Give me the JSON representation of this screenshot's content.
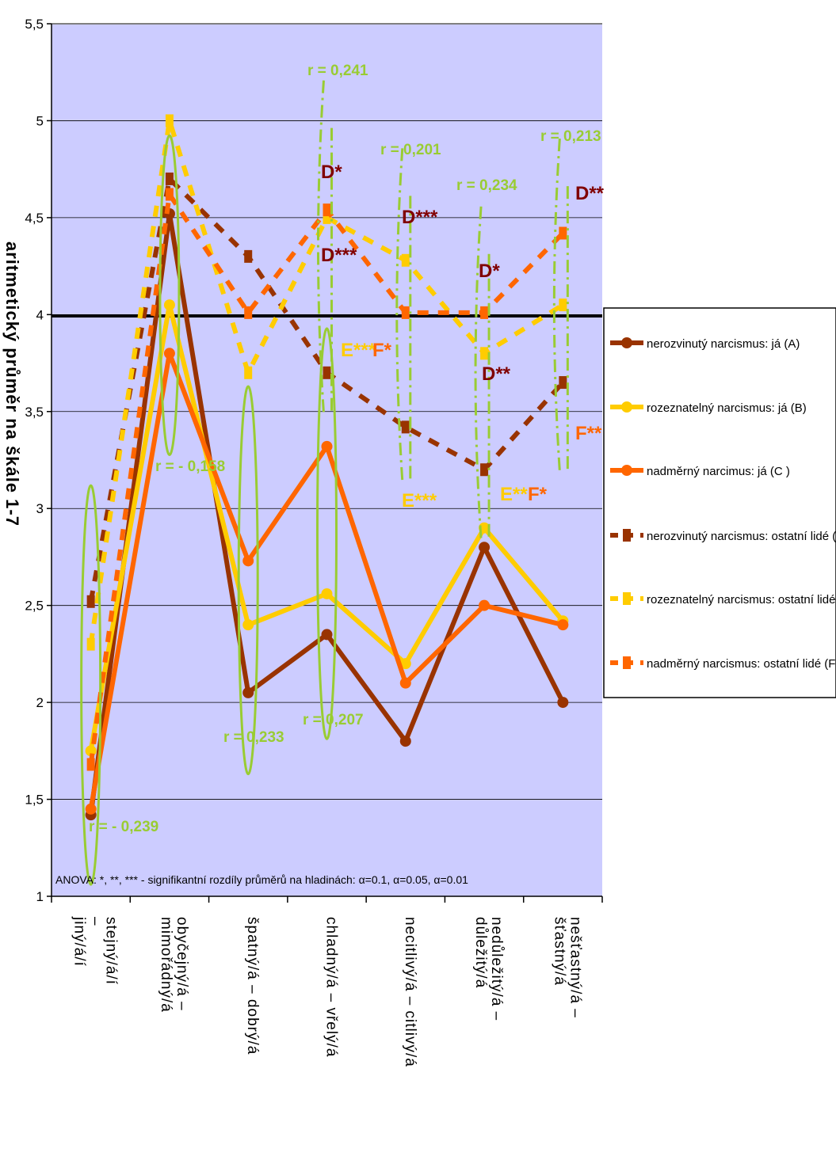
{
  "chart_data": {
    "type": "line",
    "ylabel": "aritmetický průměr na škále 1-7",
    "ylim": [
      1,
      5.5
    ],
    "yticks": [
      "1",
      "1,5",
      "2",
      "2,5",
      "3",
      "3,5",
      "4",
      "4,5",
      "5",
      "5,5"
    ],
    "reference_line": 4,
    "grid": true,
    "legend_position": "right",
    "categories": [
      [
        "stejný/á/í",
        "–",
        "jiný/á/í"
      ],
      [
        "obyčejný/á –",
        "mimořádný/á"
      ],
      [
        "špatný/á – dobrý/á"
      ],
      [
        "chladný/á – vřelý/á"
      ],
      [
        "necitlivý/á – citlivý/á"
      ],
      [
        "nedůležitý/á –",
        "důležitý/á"
      ],
      [
        "nešťastný/á –",
        "šťastný/á"
      ]
    ],
    "series": [
      {
        "name": "nerozvinutý narcismus: já (A)",
        "style": "solid",
        "color": "#993300",
        "values": [
          1.42,
          4.52,
          2.05,
          2.35,
          1.8,
          2.8,
          2.0
        ]
      },
      {
        "name": "rozeznatelný narcismus: já (B)",
        "style": "solid",
        "color": "#ffcc00",
        "values": [
          1.75,
          4.05,
          2.4,
          2.56,
          2.2,
          2.9,
          2.42
        ]
      },
      {
        "name": "nadměrný narcimus: já (C )",
        "style": "solid",
        "color": "#ff6600",
        "values": [
          1.45,
          3.8,
          2.73,
          3.32,
          2.1,
          2.5,
          2.4
        ]
      },
      {
        "name": "nerozvinutý narcismus: ostatní lidé (D)",
        "style": "dashed",
        "color": "#993300",
        "values": [
          2.52,
          4.7,
          4.3,
          3.7,
          3.42,
          3.2,
          3.65
        ]
      },
      {
        "name": "rozeznatelný narcismus: ostatní lidé (E)",
        "style": "dashed",
        "color": "#ffcc00",
        "values": [
          2.3,
          5.0,
          3.7,
          4.5,
          4.28,
          3.8,
          4.05
        ]
      },
      {
        "name": "nadměrný narcismus: ostatní lidé (F)",
        "style": "dashed",
        "color": "#ff6600",
        "values": [
          1.68,
          4.62,
          4.01,
          4.54,
          4.01,
          4.01,
          4.42
        ]
      }
    ],
    "correlations": [
      {
        "text": "r = - 0,239",
        "category": 0
      },
      {
        "text": "r = - 0,158",
        "category": 1
      },
      {
        "text": "r = 0,233",
        "category": 2
      },
      {
        "text": "r = 0,207",
        "category": 3
      },
      {
        "text": "r = 0,241",
        "category": 3
      },
      {
        "text": "r = 0,201",
        "category": 4
      },
      {
        "text": "r = 0,234",
        "category": 5
      },
      {
        "text": "r = 0,213",
        "category": 6
      }
    ],
    "significance_labels": [
      {
        "text": "D*",
        "color": "#800000"
      },
      {
        "text": "D***",
        "color": "#800000"
      },
      {
        "text": "E***",
        "color": "#ffcc00"
      },
      {
        "text": "F*",
        "color": "#ff6600"
      },
      {
        "text": "D***",
        "color": "#800000"
      },
      {
        "text": "E***",
        "color": "#ffcc00"
      },
      {
        "text": "D*",
        "color": "#800000"
      },
      {
        "text": "D**",
        "color": "#800000"
      },
      {
        "text": "E**",
        "color": "#ffcc00"
      },
      {
        "text": "F*",
        "color": "#ff6600"
      },
      {
        "text": "D**",
        "color": "#800000"
      },
      {
        "text": "F**",
        "color": "#ff6600"
      }
    ],
    "note": "ANOVA:   *, **, *** - signifikantní rozdíly průměrů na hladinách: α=0.1, α=0.05, α=0.01",
    "colors": {
      "plot_background": "#ccccff",
      "ellipse": "#99cc33"
    }
  }
}
